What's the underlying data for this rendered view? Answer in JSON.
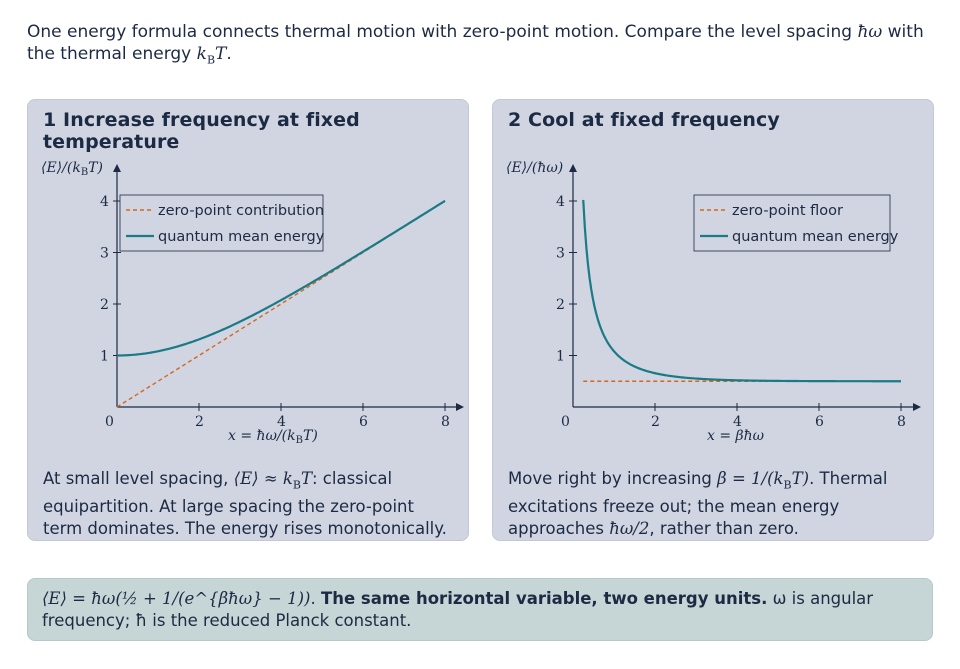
{
  "intro": {
    "text_a": "One energy formula connects thermal motion with zero-point motion. Compare the level spacing ",
    "hw": "ħω",
    "text_b": " with the thermal energy ",
    "kT": "k",
    "kT_sub": "B",
    "kT_T": "T",
    "text_c": "."
  },
  "colors": {
    "quantum": "#1a7a86",
    "zero_point": "#d4661e",
    "axis": "#1c2a44"
  },
  "panels": [
    {
      "title": "1 Increase frequency at fixed temperature",
      "text_a": "At small level spacing, ",
      "text_math": "⟨E⟩ ≈ k",
      "text_math_sub": "B",
      "text_math_T": "T",
      "text_b": ": classical equipartition. At large spacing the zero-point term dominates. The energy rises monotonically."
    },
    {
      "title": "2 Cool at fixed frequency",
      "text_a": "Move right by increasing ",
      "text_math": "β = 1/(k",
      "text_math_sub": "B",
      "text_math_T": "T)",
      "text_b": ". Thermal excitations freeze out; the mean energy approaches ",
      "text_math2": "ħω/2",
      "text_c": ", rather than zero."
    }
  ],
  "chart_data": [
    {
      "type": "line",
      "ylabel": "⟨E⟩/(k_B T)",
      "xlabel": "x = ħω/(k_B T)",
      "xlim": [
        0,
        8
      ],
      "ylim": [
        0,
        4
      ],
      "xticks": [
        "0",
        "2",
        "4",
        "6",
        "8"
      ],
      "yticks": [
        "1",
        "2",
        "3",
        "4"
      ],
      "legend_position": "top-left",
      "series": [
        {
          "name": "zero-point contribution",
          "style": "dashed",
          "x": [
            0,
            8
          ],
          "y": [
            0,
            4
          ]
        },
        {
          "name": "quantum mean energy",
          "style": "solid",
          "x": [
            0,
            1,
            2,
            3,
            4,
            5,
            6,
            7,
            8
          ],
          "y": [
            1.0,
            1.08,
            1.31,
            1.66,
            2.07,
            2.53,
            3.01,
            3.51,
            4.0
          ]
        }
      ]
    },
    {
      "type": "line",
      "ylabel": "⟨E⟩/(ħω)",
      "xlabel": "x = βħω",
      "xlim": [
        0,
        8
      ],
      "ylim": [
        0,
        4
      ],
      "xticks": [
        "0",
        "2",
        "4",
        "6",
        "8"
      ],
      "yticks": [
        "1",
        "2",
        "3",
        "4"
      ],
      "legend_position": "top-right",
      "series": [
        {
          "name": "zero-point floor",
          "style": "dashed",
          "x": [
            0.25,
            8
          ],
          "y": [
            0.5,
            0.5
          ]
        },
        {
          "name": "quantum mean energy",
          "style": "solid",
          "x": [
            0.25,
            0.5,
            1,
            2,
            3,
            4,
            6,
            8
          ],
          "y": [
            4.0,
            2.04,
            1.08,
            0.66,
            0.55,
            0.52,
            0.5,
            0.5
          ]
        }
      ]
    }
  ],
  "footer": {
    "formula": "⟨E⟩ = ħω(½ + 1/(e^{βħω} − 1))",
    "bold": "The same horizontal variable, two energy units.",
    "text_a": " ω is angular frequency; ħ is the reduced Planck constant."
  }
}
